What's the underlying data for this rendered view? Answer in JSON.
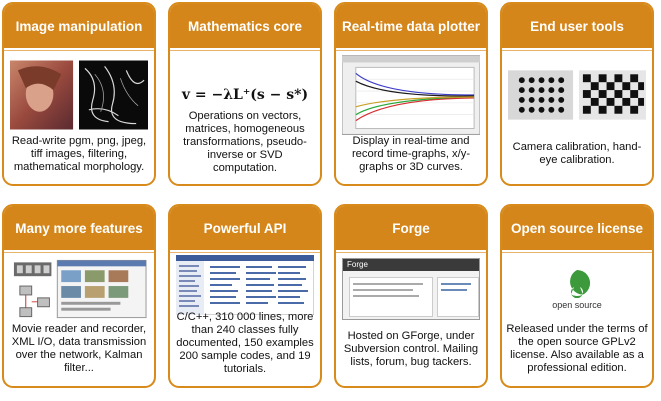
{
  "cards": [
    {
      "title": "Image manipulation",
      "desc": "Read-write pgm, png, jpeg, tiff images, filtering, mathematical morphology."
    },
    {
      "title": "Mathematics core",
      "formula": "v = −λL⁺(s − s*)",
      "desc": "Operations on vectors, matrices, homogeneous transformations, pseudo-inverse or SVD computation."
    },
    {
      "title": "Real-time data plotter",
      "desc": "Display in real-time and record time-graphs, x/y-graphs or 3D curves."
    },
    {
      "title": "End user tools",
      "desc": "Camera calibration, hand-eye calibration."
    },
    {
      "title": "Many more features",
      "desc": "Movie reader and recorder, XML I/O, data transmission over the network, Kalman filter..."
    },
    {
      "title": "Powerful API",
      "desc": "C/C++, 310 000 lines, more than 240 classes fully documented, 150 examples 200 sample codes, and 19 tutorials."
    },
    {
      "title": "Forge",
      "forge_logo": "Forge",
      "desc": "Hosted on GForge, under Subversion control. Mailing lists, forum, bug tackers."
    },
    {
      "title": "Open source license",
      "osi_label": "open source",
      "desc": "Released under the terms of the open source GPLv2 license. Also available as a professional edition."
    }
  ],
  "colors": {
    "accent": "#d4861a",
    "border": "#d88a1a"
  }
}
